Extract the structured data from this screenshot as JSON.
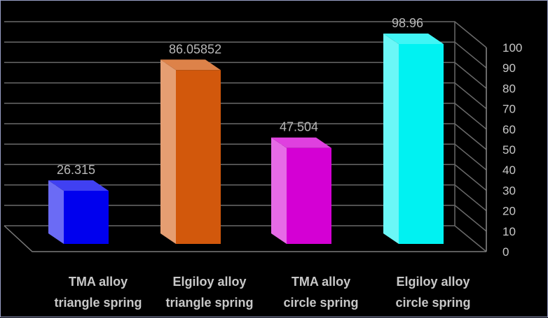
{
  "chart_data": {
    "type": "bar",
    "style": "3d-column",
    "categories": [
      [
        "TMA alloy",
        "triangle spring"
      ],
      [
        "Elgiloy alloy",
        "triangle spring"
      ],
      [
        "TMA alloy",
        "circle spring"
      ],
      [
        "Elgiloy alloy",
        "circle spring"
      ]
    ],
    "values": [
      26.315,
      86.05852,
      47.504,
      98.96
    ],
    "data_labels": [
      "26.315",
      "86.05852",
      "47.504",
      "98.96"
    ],
    "colors": [
      "#0000ee",
      "#d2580c",
      "#d400d4",
      "#00f2f2"
    ],
    "y_ticks": [
      0,
      10,
      20,
      30,
      40,
      50,
      60,
      70,
      80,
      90,
      100
    ],
    "ylim": [
      0,
      100
    ],
    "y_axis_position": "right",
    "grid": true,
    "legend": "none",
    "title": "",
    "xlabel": "",
    "ylabel": ""
  }
}
